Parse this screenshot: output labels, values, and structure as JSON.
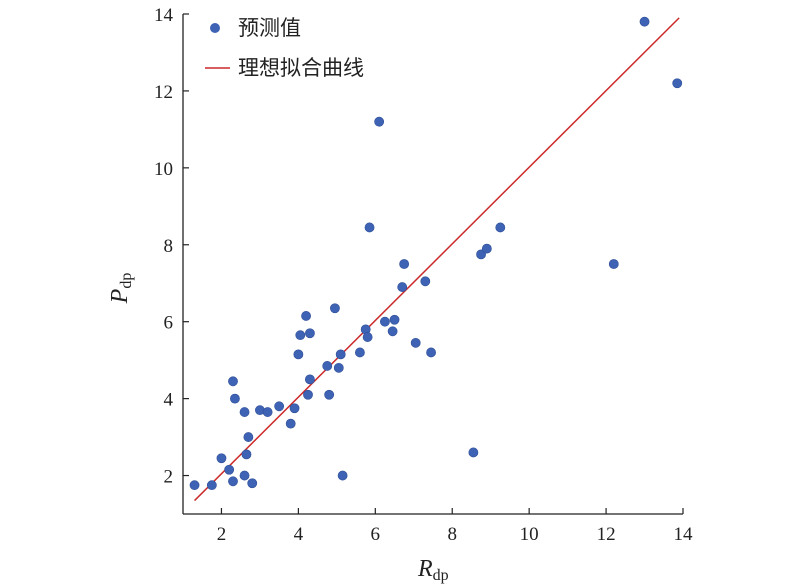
{
  "chart_data": {
    "type": "scatter",
    "title": "",
    "xlabel_main": "R",
    "xlabel_sub": "dp",
    "ylabel_main": "P",
    "ylabel_sub": "dp",
    "xlim": [
      1,
      14
    ],
    "ylim": [
      1,
      14
    ],
    "xticks": [
      2,
      4,
      6,
      8,
      10,
      12,
      14
    ],
    "yticks": [
      2,
      4,
      6,
      8,
      10,
      12,
      14
    ],
    "grid": false,
    "legend_position": "top-left",
    "series": [
      {
        "name": "预测值",
        "kind": "scatter",
        "color": "#3f63b4",
        "points": [
          [
            1.3,
            1.75
          ],
          [
            1.75,
            1.75
          ],
          [
            2.0,
            2.45
          ],
          [
            2.2,
            2.15
          ],
          [
            2.3,
            1.85
          ],
          [
            2.3,
            4.45
          ],
          [
            2.35,
            4.0
          ],
          [
            2.6,
            3.65
          ],
          [
            2.6,
            2.0
          ],
          [
            2.65,
            2.55
          ],
          [
            2.7,
            3.0
          ],
          [
            2.8,
            1.8
          ],
          [
            3.0,
            3.7
          ],
          [
            3.2,
            3.65
          ],
          [
            3.5,
            3.8
          ],
          [
            3.8,
            3.35
          ],
          [
            3.9,
            3.75
          ],
          [
            4.0,
            5.15
          ],
          [
            4.05,
            5.65
          ],
          [
            4.2,
            6.15
          ],
          [
            4.25,
            4.1
          ],
          [
            4.3,
            4.5
          ],
          [
            4.3,
            5.7
          ],
          [
            4.75,
            4.85
          ],
          [
            4.8,
            4.1
          ],
          [
            4.95,
            6.35
          ],
          [
            5.05,
            4.8
          ],
          [
            5.1,
            5.15
          ],
          [
            5.15,
            2.0
          ],
          [
            5.6,
            5.2
          ],
          [
            5.75,
            5.8
          ],
          [
            5.8,
            5.6
          ],
          [
            5.85,
            8.45
          ],
          [
            6.1,
            11.2
          ],
          [
            6.25,
            6.0
          ],
          [
            6.45,
            5.75
          ],
          [
            6.5,
            6.05
          ],
          [
            6.7,
            6.9
          ],
          [
            6.75,
            7.5
          ],
          [
            7.05,
            5.45
          ],
          [
            7.3,
            7.05
          ],
          [
            7.45,
            5.2
          ],
          [
            8.55,
            2.6
          ],
          [
            8.75,
            7.75
          ],
          [
            8.9,
            7.9
          ],
          [
            9.25,
            8.45
          ],
          [
            12.2,
            7.5
          ],
          [
            13.0,
            13.8
          ],
          [
            13.85,
            12.2
          ]
        ]
      },
      {
        "name": "理想拟合曲线",
        "kind": "line",
        "color": "#cc2a2a",
        "points": [
          [
            1.3,
            1.35
          ],
          [
            13.9,
            13.9
          ]
        ]
      }
    ]
  }
}
